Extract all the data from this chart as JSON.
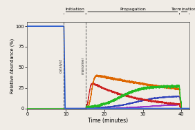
{
  "title_initiation": "Initiation",
  "title_propagation": "Propagation",
  "title_termination": "Termination",
  "xlabel": "Time (minutes)",
  "ylabel": "Relative Abundance (%)",
  "xlim": [
    0,
    42
  ],
  "ylim": [
    -1,
    105
  ],
  "yticks": [
    0,
    25,
    50,
    75,
    100
  ],
  "xticks": [
    0,
    10,
    20,
    30,
    40
  ],
  "catalyst_line_x": 9.5,
  "monomer_line_x": 15.2,
  "catalyst_label": "catalyst",
  "monomer_label": "monomer",
  "background_color": "#f0ece6",
  "blue_color": "#2255cc",
  "red_color": "#cc2222",
  "orange_color": "#dd6600",
  "green_color": "#22bb22",
  "dark_blue_color": "#3344bb",
  "purple_color": "#9933cc"
}
